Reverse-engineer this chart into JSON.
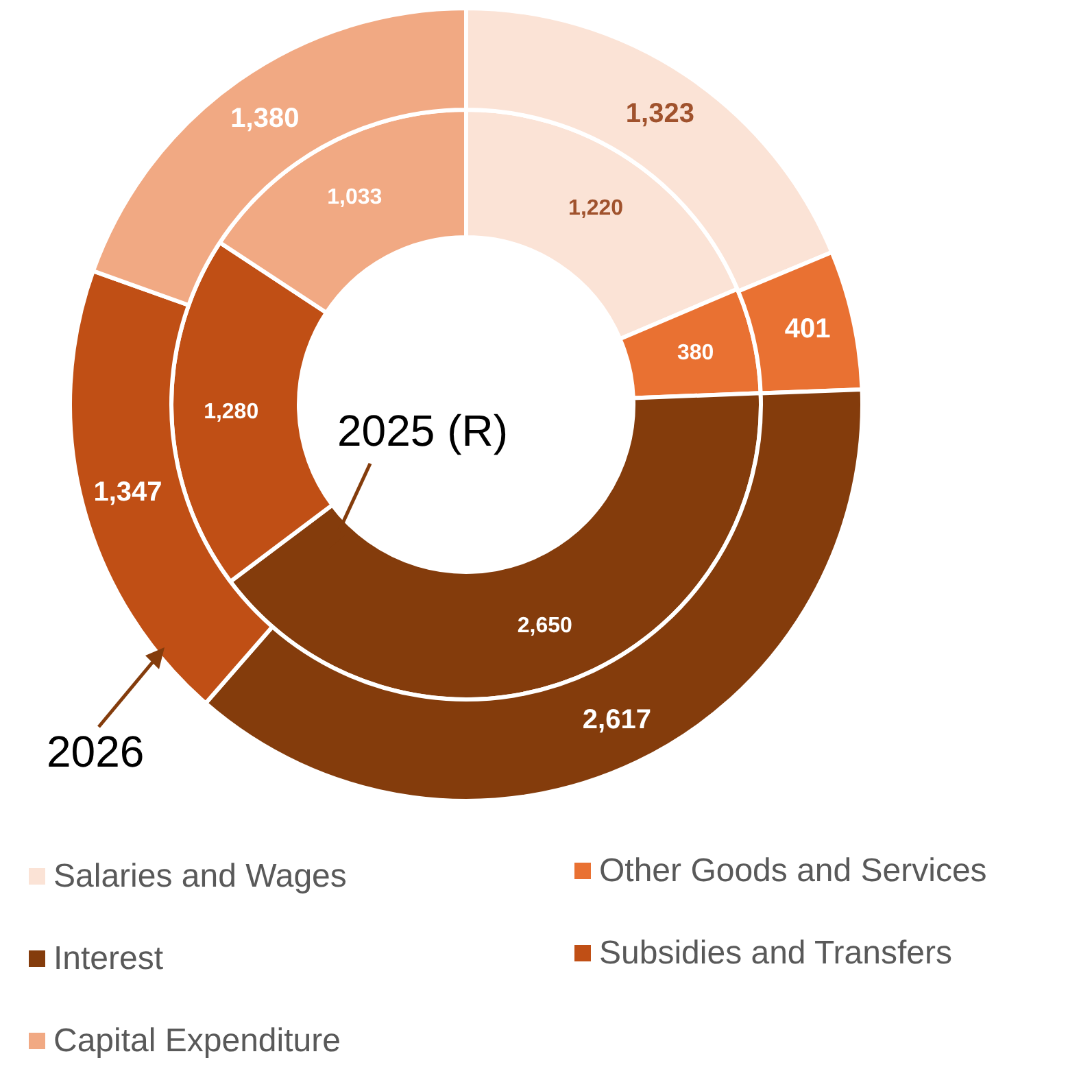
{
  "chart_data": {
    "type": "donut",
    "categories": [
      "Salaries and Wages",
      "Other Goods and Services",
      "Interest",
      "Subsidies and Transfers",
      "Capital Expenditure"
    ],
    "colors": [
      "#fbe3d6",
      "#e97132",
      "#843c0c",
      "#c04f15",
      "#f1a983"
    ],
    "series": [
      {
        "name": "2025 (R)",
        "values": [
          1220,
          380,
          2650,
          1280,
          1033
        ],
        "value_labels": [
          "1,220",
          "380",
          "2,650",
          "1,280",
          "1,033"
        ]
      },
      {
        "name": "2026",
        "values": [
          1323,
          401,
          2617,
          1347,
          1380
        ],
        "value_labels": [
          "1,323",
          "401",
          "2,617",
          "1,347",
          "1,380"
        ]
      }
    ],
    "legend": "bottom"
  }
}
